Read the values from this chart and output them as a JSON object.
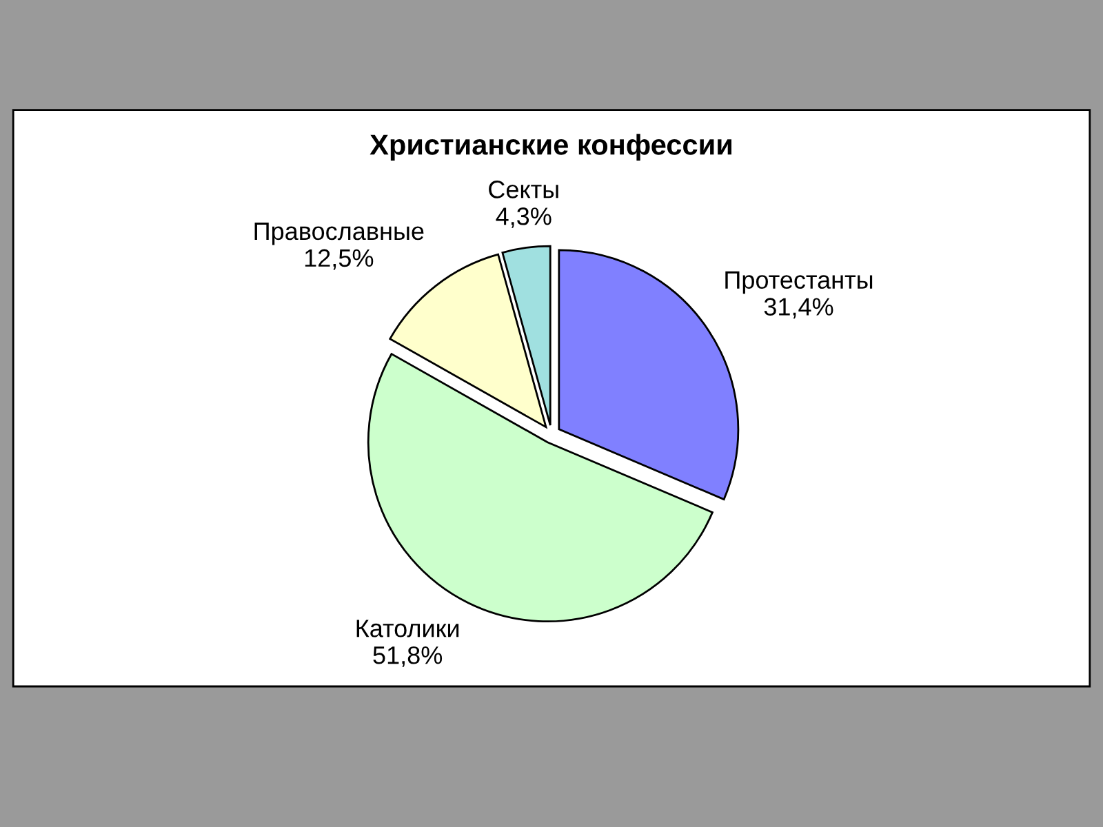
{
  "chart_data": {
    "type": "pie",
    "title": "Христианские конфессии",
    "categories": [
      "Протестанты",
      "Католики",
      "Православные",
      "Секты"
    ],
    "values": [
      31.4,
      51.8,
      12.5,
      4.3
    ],
    "colors": [
      "#8080ff",
      "#ccffcc",
      "#ffffcc",
      "#a0e0e0"
    ],
    "value_labels": [
      "31,4%",
      "51,8%",
      "12,5%",
      "4,3%"
    ]
  }
}
